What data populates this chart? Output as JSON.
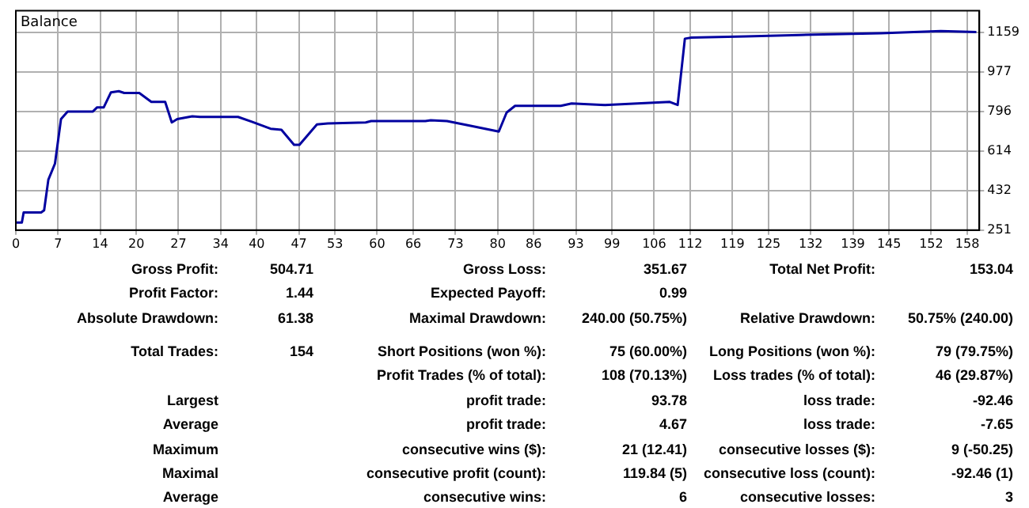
{
  "chart_data": [
    {
      "type": "line",
      "title": "Balance",
      "color": "#0000a0",
      "grid": true,
      "marker": "none",
      "x": [
        0,
        1,
        1.3,
        4.2,
        4.7,
        5.4,
        6.5,
        7.5,
        8.6,
        12.8,
        13.5,
        14.6,
        15.8,
        17.1,
        18,
        20.5,
        22.5,
        24.8,
        25.9,
        26.8,
        29.3,
        30.6,
        36.9,
        39.2,
        42.3,
        44.1,
        46.2,
        47.1,
        50,
        51.8,
        58.1,
        59,
        68,
        68.9,
        71.6,
        75.2,
        80.2,
        81.5,
        82.9,
        90.5,
        92.3,
        97.8,
        103.2,
        108.6,
        109.9,
        111.1,
        112.2,
        121.2,
        130.2,
        143.7,
        153.6,
        159.5
      ],
      "values": [
        286,
        286,
        332,
        332,
        342,
        482,
        556,
        760,
        795,
        795,
        814,
        814,
        883,
        888,
        880,
        880,
        839,
        839,
        745,
        760,
        773,
        770,
        770,
        748,
        716,
        711,
        642,
        642,
        736,
        740,
        745,
        751,
        751,
        755,
        751,
        731,
        703,
        790,
        821,
        821,
        832,
        825,
        832,
        839,
        825,
        1129,
        1134,
        1139,
        1146,
        1154,
        1164,
        1159
      ],
      "xlim": [
        0,
        160
      ],
      "xticks": [
        0,
        7,
        14,
        20,
        27,
        34,
        40,
        47,
        53,
        60,
        66,
        73,
        80,
        86,
        93,
        99,
        106,
        112,
        119,
        125,
        132,
        139,
        145,
        152,
        158
      ],
      "ylim": [
        251,
        1257
      ],
      "yticks": [
        251,
        432,
        614,
        796,
        977,
        1159
      ]
    },
    {
      "type": "other",
      "annotations": [
        "Gross Profit:",
        "504.71",
        "Gross Loss:",
        "351.67",
        "Total Net Profit:",
        "153.04",
        "Profit Factor:",
        "1.44",
        "Expected Payoff:",
        "0.99",
        "Absolute Drawdown:",
        "61.38",
        "Maximal Drawdown:",
        "240.00 (50.75%)",
        "Relative Drawdown:",
        "50.75% (240.00)",
        "Total Trades:",
        "154",
        "Short Positions (won %):",
        "75 (60.00%)",
        "Long Positions (won %):",
        "79 (79.75%)",
        "Profit Trades (% of total):",
        "108 (70.13%)",
        "Loss trades (% of total):",
        "46 (29.87%)",
        "Largest",
        "profit trade:",
        "93.78",
        "loss trade:",
        "-92.46",
        "Average",
        "profit trade:",
        "4.67",
        "loss trade:",
        "-7.65",
        "Maximum",
        "consecutive wins ($):",
        "21 (12.41)",
        "consecutive losses ($):",
        "9 (-50.25)",
        "Maximal",
        "consecutive profit (count):",
        "119.84 (5)",
        "consecutive loss (count):",
        "-92.46 (1)",
        "Average",
        "consecutive wins:",
        "6",
        "consecutive losses:",
        "3"
      ]
    }
  ]
}
